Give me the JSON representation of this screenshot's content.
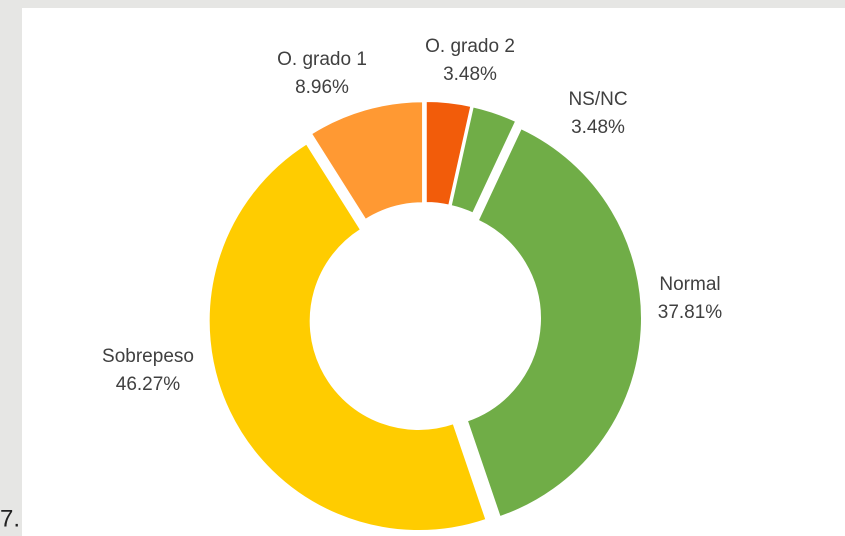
{
  "chart_data": {
    "type": "donut",
    "categories": [
      "O. grado 2",
      "NS/NC",
      "Normal",
      "Sobrepeso",
      "O. grado 1"
    ],
    "values": [
      3.48,
      3.48,
      37.81,
      46.27,
      8.96
    ],
    "value_labels": [
      "3.48%",
      "3.48%",
      "37.81%",
      "46.27%",
      "8.96%"
    ],
    "colors": [
      "#f25c0a",
      "#70ad47",
      "#70ad47",
      "#ffcc00",
      "#ff9933"
    ]
  },
  "footer_text": "7."
}
